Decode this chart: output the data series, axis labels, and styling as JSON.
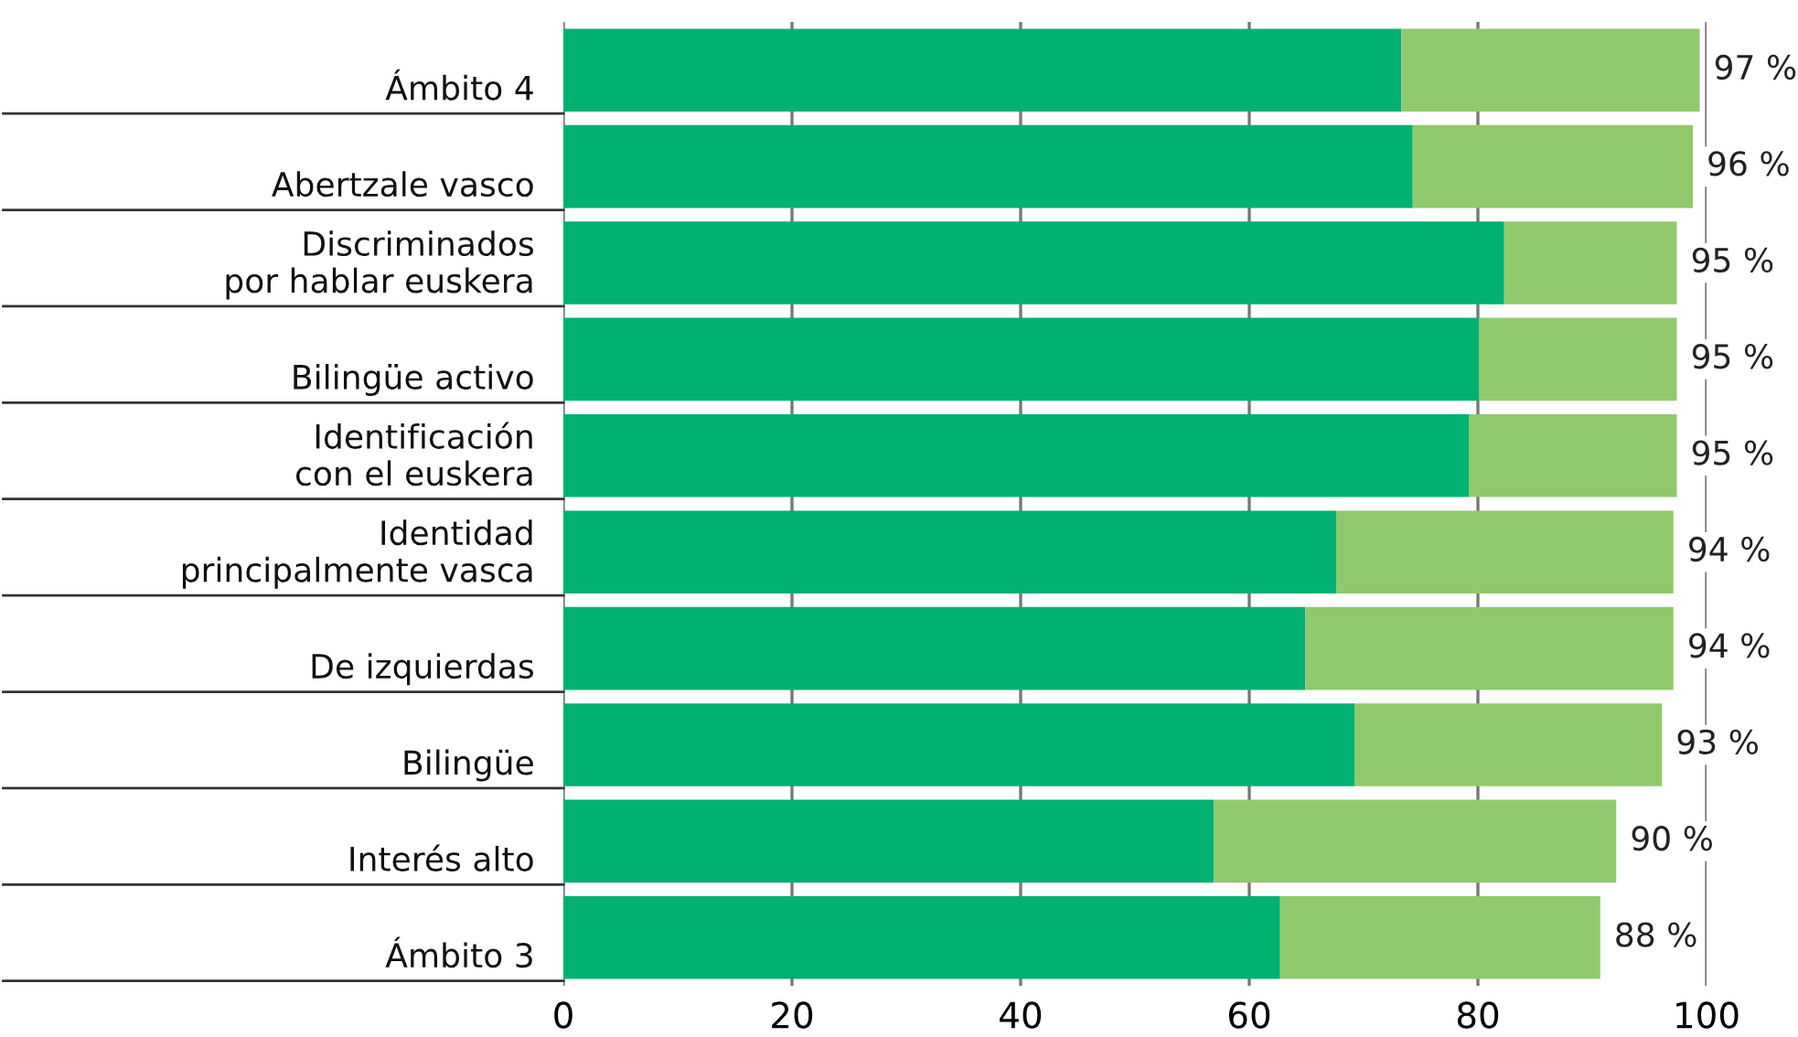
{
  "chart_data": {
    "type": "bar",
    "orientation": "horizontal",
    "stacked": true,
    "categories": [
      "Ámbito 4",
      "Abertzale vasco",
      "Discriminados\npor hablar euskera",
      "Bilingüe activo",
      "Identificación\ncon el euskera",
      "Identidad\nprincipalmente vasca",
      "De izquierdas",
      "Bilingüe",
      "Interés alto",
      "Ámbito 3"
    ],
    "series": [
      {
        "color": "#00b171",
        "values": [
          73.3,
          74.3,
          82.3,
          80.1,
          79.2,
          67.6,
          64.9,
          69.2,
          56.9,
          62.7
        ]
      },
      {
        "color": "#90c96c",
        "values": [
          26.1,
          24.5,
          15.1,
          17.3,
          18.2,
          29.5,
          32.2,
          26.9,
          35.2,
          28.0
        ]
      }
    ],
    "annotations": [
      {
        "text": "97 %",
        "x": 99.4,
        "y": "Ámbito 4"
      },
      {
        "text": "96 %",
        "x": 98.8,
        "y": "Abertzale vasco"
      },
      {
        "text": "95 %",
        "x": 97.4,
        "y": "Discriminados\npor hablar euskera"
      },
      {
        "text": "95 %",
        "x": 97.4,
        "y": "Bilingüe activo"
      },
      {
        "text": "95 %",
        "x": 97.4,
        "y": "Identificación\ncon el euskera"
      },
      {
        "text": "94 %",
        "x": 97.1,
        "y": "Identidad\nprincipalmente vasca"
      },
      {
        "text": "94 %",
        "x": 97.1,
        "y": "De izquierdas"
      },
      {
        "text": "93 %",
        "x": 96.1,
        "y": "Bilingüe"
      },
      {
        "text": "90 %",
        "x": 92.1,
        "y": "Interés alto"
      },
      {
        "text": "88 %",
        "x": 90.7,
        "y": "Ámbito 3"
      }
    ],
    "xlim": [
      0,
      100
    ],
    "xticks": [
      0,
      20,
      40,
      60,
      80,
      100
    ],
    "grid": "x",
    "legend": false
  }
}
